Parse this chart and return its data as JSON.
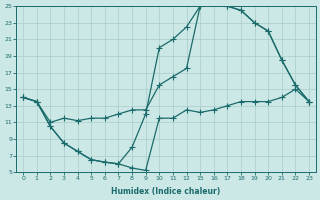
{
  "xlabel": "Humidex (Indice chaleur)",
  "bg_color": "#cce8e6",
  "grid_color": "#aaccca",
  "line_color": "#1a6b6b",
  "xtick_labels": [
    "0",
    "1",
    "2",
    "3",
    "4",
    "5",
    "6",
    "7",
    "8",
    "9",
    "10",
    "11",
    "12",
    "15",
    "16",
    "17",
    "18",
    "19",
    "20",
    "21",
    "22",
    "23"
  ],
  "ytick_labels": [
    "5",
    "7",
    "9",
    "11",
    "13",
    "15",
    "17",
    "19",
    "21",
    "23",
    "25"
  ],
  "ytick_vals": [
    5,
    7,
    9,
    11,
    13,
    15,
    17,
    19,
    21,
    23,
    25
  ],
  "line1_y": [
    14,
    13.5,
    10.5,
    8.5,
    7.5,
    6.5,
    6.2,
    6.0,
    5.5,
    5.2,
    11.5,
    11.5,
    12.5,
    12.2,
    12.5,
    13.0,
    13.5,
    13.5,
    13.5,
    14.0,
    15.0,
    13.5
  ],
  "line2_y": [
    14,
    13.5,
    11.0,
    11.5,
    11.2,
    11.5,
    11.5,
    12.0,
    12.5,
    12.5,
    15.5,
    16.5,
    17.5,
    25.0,
    25.5,
    25.0,
    24.5,
    23.0,
    22.0,
    18.5,
    15.5,
    13.5
  ],
  "line3_y": [
    14,
    13.5,
    10.5,
    8.5,
    7.5,
    6.5,
    6.2,
    6.0,
    8.0,
    12.0,
    20.0,
    21.0,
    22.5,
    25.0,
    25.5,
    25.0,
    24.5,
    23.0,
    22.0,
    18.5,
    15.5,
    13.5
  ]
}
